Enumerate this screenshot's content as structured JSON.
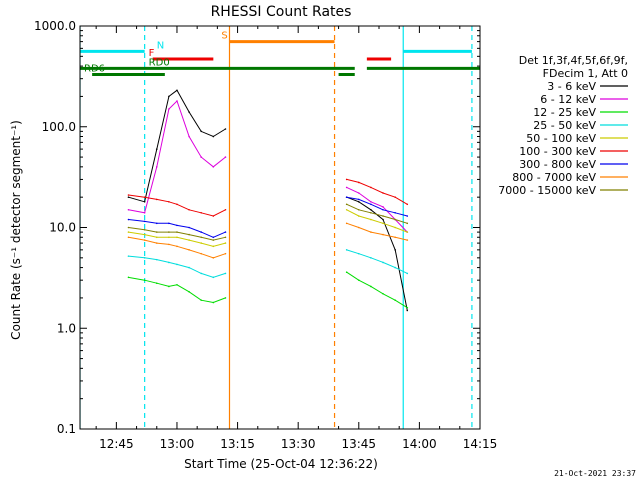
{
  "chart_data": {
    "type": "line",
    "title": "RHESSI Count Rates",
    "xlabel": "Start Time (25-Oct-04 12:36:22)",
    "ylabel": "Count Rate (s⁻¹ detector segment⁻¹)",
    "y_scale": "log",
    "ylim": [
      0.1,
      1000
    ],
    "xlim": [
      "12:36",
      "14:15"
    ],
    "y_ticks": [
      "0.1",
      "1.0",
      "10.0",
      "100.0",
      "1000.0"
    ],
    "x_ticks": [
      "12:45",
      "13:00",
      "13:15",
      "13:30",
      "13:45",
      "14:00",
      "14:15"
    ],
    "legend_header": [
      "Det 1f,3f,4f,5f,6f,9f,",
      "FDecim 1, Att 0"
    ],
    "legend_position": "right",
    "series": [
      {
        "name": "3 - 6 keV",
        "color": "#000000",
        "x": [
          "12:48",
          "12:52",
          "12:55",
          "12:58",
          "13:00",
          "13:03",
          "13:06",
          "13:09",
          "13:12",
          "13:42",
          "13:45",
          "13:48",
          "13:51",
          "13:54",
          "13:57"
        ],
        "y": [
          20,
          18,
          60,
          200,
          230,
          140,
          90,
          80,
          95,
          20,
          18,
          15,
          12,
          6,
          1.5
        ]
      },
      {
        "name": "6 - 12 keV",
        "color": "#dd00dd",
        "x": [
          "12:48",
          "12:52",
          "12:55",
          "12:58",
          "13:00",
          "13:03",
          "13:06",
          "13:09",
          "13:12",
          "13:42",
          "13:45",
          "13:48",
          "13:51",
          "13:54",
          "13:57"
        ],
        "y": [
          15,
          14,
          40,
          150,
          180,
          80,
          50,
          40,
          50,
          25,
          22,
          18,
          16,
          12,
          9
        ]
      },
      {
        "name": "12 - 25 keV",
        "color": "#00dd00",
        "x": [
          "12:48",
          "12:52",
          "12:55",
          "12:58",
          "13:00",
          "13:03",
          "13:06",
          "13:09",
          "13:12",
          "13:42",
          "13:45",
          "13:48",
          "13:51",
          "13:54",
          "13:57"
        ],
        "y": [
          3.2,
          3.0,
          2.8,
          2.6,
          2.7,
          2.3,
          1.9,
          1.8,
          2.0,
          3.6,
          3.0,
          2.6,
          2.2,
          1.9,
          1.6
        ]
      },
      {
        "name": "25 - 50 keV",
        "color": "#00dddd",
        "x": [
          "12:48",
          "12:52",
          "12:55",
          "12:58",
          "13:00",
          "13:03",
          "13:06",
          "13:09",
          "13:12",
          "13:42",
          "13:45",
          "13:48",
          "13:51",
          "13:54",
          "13:57"
        ],
        "y": [
          5.2,
          5.0,
          4.8,
          4.5,
          4.3,
          4.0,
          3.5,
          3.2,
          3.5,
          6.0,
          5.5,
          5.0,
          4.5,
          4.0,
          3.5
        ]
      },
      {
        "name": "50 - 100 keV",
        "color": "#cccc00",
        "x": [
          "12:48",
          "12:52",
          "12:55",
          "12:58",
          "13:00",
          "13:03",
          "13:06",
          "13:09",
          "13:12",
          "13:42",
          "13:45",
          "13:48",
          "13:51",
          "13:54",
          "13:57"
        ],
        "y": [
          9,
          8.5,
          8,
          8,
          8,
          7.5,
          7,
          6.5,
          7,
          15,
          13,
          12,
          11,
          10,
          9
        ]
      },
      {
        "name": "100 - 300 keV",
        "color": "#ee0000",
        "x": [
          "12:48",
          "12:52",
          "12:55",
          "12:58",
          "13:00",
          "13:03",
          "13:06",
          "13:09",
          "13:12",
          "13:42",
          "13:45",
          "13:48",
          "13:51",
          "13:54",
          "13:57"
        ],
        "y": [
          21,
          20,
          19,
          18,
          17,
          15,
          14,
          13,
          15,
          30,
          28,
          25,
          22,
          20,
          17
        ]
      },
      {
        "name": "300 - 800 keV",
        "color": "#0000ee",
        "x": [
          "12:48",
          "12:52",
          "12:55",
          "12:58",
          "13:00",
          "13:03",
          "13:06",
          "13:09",
          "13:12",
          "13:42",
          "13:45",
          "13:48",
          "13:51",
          "13:54",
          "13:57"
        ],
        "y": [
          12,
          11.5,
          11,
          11,
          10.5,
          10,
          9,
          8,
          9,
          20,
          19,
          17,
          15,
          14,
          13
        ]
      },
      {
        "name": "800 - 7000 keV",
        "color": "#ff8000",
        "x": [
          "12:48",
          "12:52",
          "12:55",
          "12:58",
          "13:00",
          "13:03",
          "13:06",
          "13:09",
          "13:12",
          "13:42",
          "13:45",
          "13:48",
          "13:51",
          "13:54",
          "13:57"
        ],
        "y": [
          8,
          7.5,
          7,
          6.8,
          6.5,
          6,
          5.5,
          5,
          5.5,
          11,
          10,
          9,
          8.5,
          8,
          7.5
        ]
      },
      {
        "name": "7000 - 15000 keV",
        "color": "#808000",
        "x": [
          "12:48",
          "12:52",
          "12:55",
          "12:58",
          "13:00",
          "13:03",
          "13:06",
          "13:09",
          "13:12",
          "13:42",
          "13:45",
          "13:48",
          "13:51",
          "13:54",
          "13:57"
        ],
        "y": [
          10,
          9.5,
          9,
          9,
          9,
          8.5,
          8,
          7.5,
          8,
          17,
          15,
          14,
          13,
          12,
          11
        ]
      }
    ],
    "state_bars": [
      {
        "label": "N",
        "color": "#00e5ee",
        "segments": [
          [
            "12:36",
            "12:52"
          ],
          [
            "13:56",
            "14:13"
          ]
        ],
        "level": 560,
        "label_at": "12:55"
      },
      {
        "label": "F",
        "color": "#ee0000",
        "segments": [
          [
            "12:54",
            "13:09"
          ],
          [
            "13:47",
            "13:53"
          ]
        ],
        "level": 470,
        "label_at": "12:53"
      },
      {
        "label": "S",
        "color": "#ff8000",
        "segments": [
          [
            "13:13",
            "13:39"
          ]
        ],
        "level": 700,
        "label_at": "13:11"
      },
      {
        "label": "RD0",
        "color": "#007700",
        "segments": [
          [
            "12:36",
            "13:44"
          ],
          [
            "13:47",
            "14:15"
          ]
        ],
        "level": 380,
        "label_at": "12:53"
      },
      {
        "label": "RD6",
        "color": "#007700",
        "segments": [
          [
            "12:39",
            "12:57"
          ],
          [
            "13:40",
            "13:44"
          ]
        ],
        "level": 330,
        "label_at": "12:37"
      }
    ],
    "vlines": [
      {
        "x": "12:36",
        "color": "#00e5ee",
        "style": "solid"
      },
      {
        "x": "12:52",
        "color": "#00e5ee",
        "style": "dashed"
      },
      {
        "x": "13:13",
        "color": "#ff8000",
        "style": "solid"
      },
      {
        "x": "13:39",
        "color": "#ff8000",
        "style": "dashed"
      },
      {
        "x": "13:56",
        "color": "#00e5ee",
        "style": "solid"
      },
      {
        "x": "14:13",
        "color": "#00e5ee",
        "style": "dashed"
      }
    ],
    "footer": "21-Oct-2021 23:37"
  }
}
